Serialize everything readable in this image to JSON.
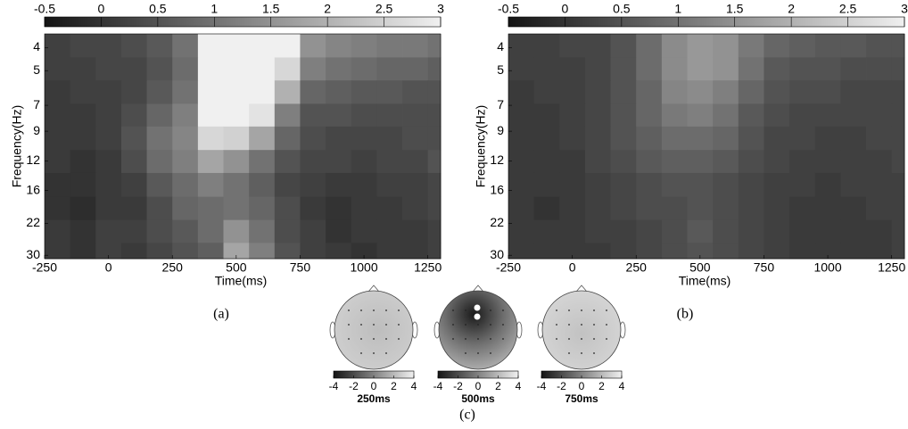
{
  "chart_data": [
    {
      "type": "heatmap",
      "caption": "(a)",
      "xlabel": "Time(ms)",
      "ylabel": "Frequency(Hz)",
      "xlim": [
        -250,
        1300
      ],
      "xticks": [
        -250,
        0,
        250,
        500,
        750,
        1000,
        1250
      ],
      "ylim": [
        3.5,
        31
      ],
      "yticks": [
        4,
        5,
        7,
        9,
        12,
        16,
        22,
        30
      ],
      "log_y": true,
      "y_reversed": true,
      "colorbar_lim": [
        -0.5,
        3
      ],
      "colorbar_ticks": [
        -0.5,
        0,
        0.5,
        1,
        1.5,
        2,
        2.5,
        3
      ],
      "x_bins": [
        -250,
        -150,
        -50,
        50,
        150,
        250,
        350,
        450,
        550,
        650,
        750,
        850,
        950,
        1050,
        1150,
        1250,
        1300
      ],
      "y_bins": [
        3.5,
        4.4,
        5.5,
        6.9,
        8.6,
        10.8,
        13.5,
        17,
        21.3,
        26.6,
        31
      ],
      "values": [
        [
          0.2,
          0.3,
          0.3,
          0.4,
          0.6,
          1.0,
          3,
          3,
          3,
          3,
          1.5,
          1.3,
          1.2,
          1.1,
          1.1,
          1.0
        ],
        [
          0.2,
          0.2,
          0.3,
          0.3,
          0.5,
          0.9,
          3,
          3,
          3,
          2.6,
          1.2,
          1.0,
          0.9,
          0.8,
          0.8,
          0.7
        ],
        [
          0.1,
          0.2,
          0.2,
          0.3,
          0.6,
          1.0,
          3,
          3,
          3,
          2.0,
          0.8,
          0.7,
          0.6,
          0.6,
          0.5,
          0.5
        ],
        [
          0.1,
          0.1,
          0.2,
          0.4,
          0.8,
          1.2,
          3,
          3,
          2.8,
          1.2,
          0.5,
          0.5,
          0.4,
          0.4,
          0.4,
          0.4
        ],
        [
          0.1,
          0.1,
          0.2,
          0.5,
          1.0,
          1.3,
          2.6,
          2.5,
          1.8,
          0.8,
          0.4,
          0.3,
          0.3,
          0.3,
          0.4,
          0.4
        ],
        [
          0.1,
          0.0,
          0.1,
          0.4,
          0.9,
          1.2,
          1.8,
          1.5,
          1.0,
          0.5,
          0.3,
          0.3,
          0.2,
          0.3,
          0.3,
          0.5
        ],
        [
          0.0,
          0.0,
          0.1,
          0.2,
          0.6,
          0.9,
          1.2,
          1.0,
          0.7,
          0.3,
          0.2,
          0.1,
          0.1,
          0.2,
          0.2,
          0.3
        ],
        [
          0.0,
          -0.1,
          0.1,
          0.1,
          0.4,
          0.8,
          0.9,
          1.0,
          0.8,
          0.4,
          0.1,
          0.0,
          0.1,
          0.1,
          0.2,
          0.3
        ],
        [
          0.1,
          0.0,
          0.2,
          0.2,
          0.4,
          0.6,
          0.9,
          1.5,
          1.0,
          0.4,
          0.2,
          0.0,
          0.1,
          0.1,
          0.1,
          0.2
        ],
        [
          0.1,
          0.0,
          0.2,
          0.1,
          0.3,
          0.5,
          0.7,
          1.8,
          1.2,
          0.5,
          0.2,
          0.1,
          0.0,
          0.1,
          0.1,
          0.2
        ]
      ]
    },
    {
      "type": "heatmap",
      "caption": "(b)",
      "xlabel": "Time(ms)",
      "ylabel": "Frequency(Hz)",
      "xlim": [
        -250,
        1300
      ],
      "xticks": [
        -250,
        0,
        250,
        500,
        750,
        1000,
        1250
      ],
      "ylim": [
        3.5,
        31
      ],
      "yticks": [
        4,
        5,
        7,
        9,
        12,
        16,
        22,
        30
      ],
      "log_y": true,
      "y_reversed": true,
      "colorbar_lim": [
        -0.5,
        3
      ],
      "colorbar_ticks": [
        -0.5,
        0,
        0.5,
        1,
        1.5,
        2,
        2.5,
        3
      ],
      "x_bins": [
        -250,
        -150,
        -50,
        50,
        150,
        250,
        350,
        450,
        550,
        650,
        750,
        850,
        950,
        1050,
        1150,
        1250,
        1300
      ],
      "y_bins": [
        3.5,
        4.4,
        5.5,
        6.9,
        8.6,
        10.8,
        13.5,
        17,
        21.3,
        26.6,
        31
      ],
      "values": [
        [
          0.2,
          0.2,
          0.3,
          0.3,
          0.5,
          0.9,
          1.4,
          1.6,
          1.5,
          1.1,
          0.8,
          0.7,
          0.6,
          0.6,
          0.5,
          0.5
        ],
        [
          0.2,
          0.2,
          0.2,
          0.3,
          0.5,
          0.9,
          1.4,
          1.6,
          1.5,
          1.0,
          0.6,
          0.5,
          0.5,
          0.4,
          0.4,
          0.4
        ],
        [
          0.1,
          0.2,
          0.2,
          0.3,
          0.5,
          0.8,
          1.3,
          1.4,
          1.2,
          0.8,
          0.5,
          0.4,
          0.4,
          0.3,
          0.3,
          0.3
        ],
        [
          0.1,
          0.1,
          0.2,
          0.3,
          0.5,
          0.8,
          1.1,
          1.2,
          1.0,
          0.6,
          0.4,
          0.3,
          0.3,
          0.3,
          0.3,
          0.3
        ],
        [
          0.1,
          0.1,
          0.2,
          0.3,
          0.5,
          0.7,
          0.9,
          0.9,
          0.8,
          0.5,
          0.3,
          0.3,
          0.2,
          0.2,
          0.3,
          0.3
        ],
        [
          0.1,
          0.1,
          0.1,
          0.3,
          0.4,
          0.6,
          0.7,
          0.7,
          0.6,
          0.4,
          0.3,
          0.2,
          0.2,
          0.2,
          0.2,
          0.3
        ],
        [
          0.1,
          0.1,
          0.1,
          0.2,
          0.3,
          0.4,
          0.5,
          0.5,
          0.4,
          0.3,
          0.2,
          0.2,
          0.1,
          0.2,
          0.2,
          0.2
        ],
        [
          0.1,
          0.0,
          0.1,
          0.2,
          0.3,
          0.4,
          0.4,
          0.5,
          0.4,
          0.3,
          0.2,
          0.1,
          0.1,
          0.1,
          0.2,
          0.2
        ],
        [
          0.1,
          0.1,
          0.1,
          0.2,
          0.2,
          0.3,
          0.4,
          0.6,
          0.4,
          0.3,
          0.2,
          0.1,
          0.1,
          0.1,
          0.1,
          0.2
        ],
        [
          0.1,
          0.1,
          0.1,
          0.1,
          0.2,
          0.3,
          0.4,
          0.5,
          0.4,
          0.3,
          0.2,
          0.1,
          0.1,
          0.1,
          0.1,
          0.2
        ]
      ]
    },
    {
      "type": "topomap",
      "title": "250ms",
      "clim": [
        -4,
        4
      ],
      "cticks": [
        -4,
        -2,
        0,
        2,
        4
      ]
    },
    {
      "type": "topomap",
      "title": "500ms",
      "clim": [
        -4,
        4
      ],
      "cticks": [
        -4,
        -2,
        0,
        2,
        4
      ]
    },
    {
      "type": "topomap",
      "title": "750ms",
      "clim": [
        -4,
        4
      ],
      "cticks": [
        -4,
        -2,
        0,
        2,
        4
      ]
    }
  ],
  "figure_caption": "(c)"
}
